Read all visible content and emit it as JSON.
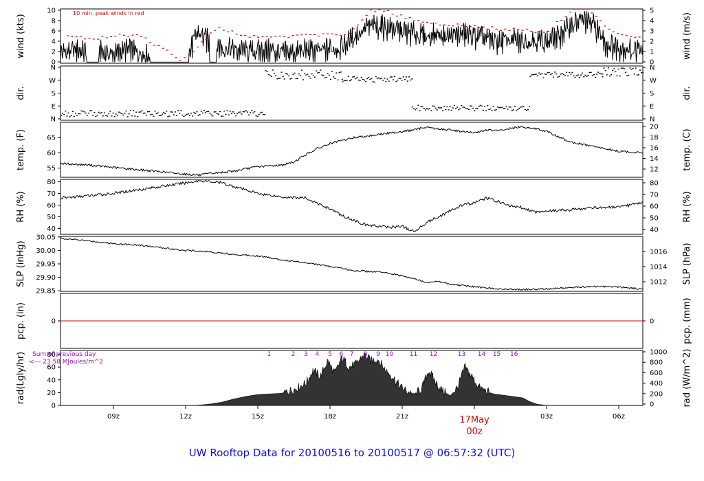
{
  "footer_title": "UW Rooftop Data for 20100516  to  20100517 @ 06:57:32  (UTC)",
  "colors": {
    "axis": "#000000",
    "peak": "#e00000",
    "annot": "#9010c0",
    "date": "#e00000",
    "footer": "#1010d0"
  },
  "chart_data": [
    {
      "type": "line",
      "ylabel": "wind (kts)",
      "ylabel_right": "wind (m/s)",
      "yticks": [
        "0",
        "2",
        "4",
        "6",
        "8",
        "10"
      ],
      "yticks_right": [
        "0",
        "1",
        "2",
        "3",
        "4",
        "5"
      ],
      "ylim": [
        0,
        10
      ],
      "annotation": "10 min. peak winds in red",
      "series": [
        {
          "x": [
            6.8,
            7.5,
            8.0,
            8.5,
            9.0,
            9.5,
            10.0,
            10.6,
            11.0,
            11.5,
            12.0,
            12.5,
            13.0,
            13.5,
            14.0,
            14.5,
            15.0,
            15.5,
            16.0,
            16.5,
            17.0,
            17.5,
            18.0,
            18.5,
            19.0,
            19.5,
            20.0,
            20.5,
            21.0,
            21.5,
            22.0,
            22.5,
            23.0,
            23.5,
            24.0,
            24.5,
            25.0,
            25.5,
            26.0,
            26.5,
            27.0,
            27.5,
            28.0,
            28.5,
            29.0,
            29.5,
            30.0,
            30.5,
            31.0
          ],
          "values": [
            2.0,
            2.5,
            1.8,
            2.2,
            1.5,
            2.6,
            2.0,
            1.2,
            0.2,
            0.2,
            0.2,
            5.8,
            4.0,
            3.0,
            2.5,
            2.2,
            2.3,
            2.5,
            2.0,
            2.0,
            2.5,
            2.2,
            2.8,
            3.0,
            5.0,
            6.5,
            7.0,
            6.5,
            6.0,
            5.5,
            5.0,
            5.5,
            5.0,
            5.5,
            5.0,
            4.5,
            4.0,
            4.5,
            4.0,
            4.5,
            4.0,
            5.0,
            7.0,
            8.0,
            7.0,
            3.5,
            3.0,
            2.5,
            2.5
          ]
        }
      ],
      "peaks": {
        "x": [
          7.1,
          8.3,
          9.2,
          10.0,
          11.9,
          13.3,
          14.6,
          16.0,
          17.4,
          18.8,
          19.6,
          20.2,
          21.0,
          22.0,
          23.0,
          24.0,
          25.0,
          26.0,
          27.0,
          28.0,
          28.7,
          29.5,
          30.5
        ],
        "values": [
          4.9,
          4.6,
          5.1,
          5.3,
          0.5,
          6.5,
          4.9,
          5.0,
          5.1,
          5.3,
          9.5,
          9.8,
          8.6,
          7.5,
          7.2,
          6.9,
          6.3,
          6.2,
          5.7,
          9.6,
          9.9,
          6.5,
          4.9
        ]
      }
    },
    {
      "type": "scatter",
      "ylabel": "dir.",
      "ylabel_right": "dir.",
      "yticks": [
        "N",
        "E",
        "S",
        "W",
        "N"
      ],
      "yticks_right": [
        "N",
        "E",
        "S",
        "W",
        "N"
      ],
      "ylim": [
        0,
        360
      ],
      "segments": [
        {
          "from": 6.8,
          "to": 15.3,
          "base": 40,
          "spread": 45
        },
        {
          "from": 15.3,
          "to": 18.5,
          "base": 310,
          "spread": 70
        },
        {
          "from": 18.5,
          "to": 21.4,
          "base": 280,
          "spread": 40
        },
        {
          "from": 21.4,
          "to": 26.3,
          "base": 80,
          "spread": 40
        },
        {
          "from": 26.3,
          "to": 29.3,
          "base": 310,
          "spread": 40
        },
        {
          "from": 29.3,
          "to": 31.0,
          "base": 330,
          "spread": 60
        }
      ]
    },
    {
      "type": "line",
      "ylabel": "temp. (F)",
      "ylabel_right": "temp. (C)",
      "yticks": [
        "55",
        "60",
        "65"
      ],
      "ytick_values": [
        55,
        60,
        65
      ],
      "yticks_right": [
        "12",
        "14",
        "16",
        "18",
        "20"
      ],
      "ylim": [
        52,
        70
      ],
      "series": [
        {
          "x": [
            6.8,
            8.0,
            9.0,
            10.0,
            11.0,
            12.0,
            12.6,
            13.0,
            14.0,
            15.0,
            16.0,
            16.5,
            17.0,
            17.5,
            18.0,
            18.5,
            19.0,
            19.5,
            20.0,
            20.5,
            21.0,
            21.5,
            22.0,
            22.5,
            23.0,
            23.5,
            24.0,
            24.5,
            25.0,
            25.5,
            26.0,
            26.5,
            27.0,
            28.0,
            29.0,
            30.0,
            31.0
          ],
          "values": [
            56.5,
            56.0,
            55.2,
            54.5,
            53.8,
            53.0,
            52.7,
            53.2,
            54.0,
            55.5,
            56.0,
            57.0,
            59.5,
            61.5,
            63.0,
            64.0,
            65.0,
            65.5,
            66.0,
            66.5,
            67.0,
            67.5,
            68.5,
            67.8,
            67.5,
            67.0,
            66.5,
            67.5,
            67.2,
            68.0,
            68.5,
            68.0,
            67.0,
            63.5,
            62.0,
            60.5,
            60.0
          ]
        }
      ]
    },
    {
      "type": "line",
      "ylabel": "RH (%)",
      "ylabel_right": "RH (%)",
      "yticks": [
        "40",
        "50",
        "60",
        "70",
        "80"
      ],
      "ytick_values": [
        40,
        50,
        60,
        70,
        80
      ],
      "yticks_right": [
        "40",
        "50",
        "60",
        "70",
        "80"
      ],
      "ylim": [
        35,
        82
      ],
      "series": [
        {
          "x": [
            6.8,
            8.0,
            9.0,
            10.0,
            11.0,
            12.0,
            12.6,
            13.5,
            14.0,
            15.0,
            16.0,
            17.0,
            17.5,
            18.0,
            18.5,
            19.0,
            19.5,
            20.0,
            20.5,
            21.0,
            21.5,
            22.0,
            22.5,
            23.0,
            23.5,
            24.0,
            24.5,
            25.0,
            25.5,
            26.0,
            26.5,
            27.0,
            28.0,
            29.0,
            30.0,
            31.0
          ],
          "values": [
            66,
            68,
            70,
            73,
            76,
            79,
            81,
            79,
            76,
            70,
            67,
            66,
            61,
            57,
            51,
            47,
            43,
            42,
            41,
            42,
            37,
            45,
            50,
            55,
            60,
            62,
            66,
            63,
            59,
            58,
            54,
            55,
            56,
            58,
            58,
            62
          ]
        }
      ]
    },
    {
      "type": "line",
      "ylabel": "SLP (inHg)",
      "ylabel_right": "SLP (hPa)",
      "yticks": [
        "29.85",
        "29.90",
        "29.95",
        "30.00",
        "30.05"
      ],
      "ytick_values": [
        29.85,
        29.9,
        29.95,
        30.0,
        30.05
      ],
      "yticks_right": [
        "1012",
        "1014",
        "1016"
      ],
      "ylim": [
        29.848,
        30.052
      ],
      "series": [
        {
          "x": [
            6.8,
            8.0,
            9.0,
            10.0,
            11.0,
            12.0,
            13.0,
            14.0,
            15.0,
            16.0,
            17.0,
            18.0,
            19.0,
            20.0,
            20.5,
            21.0,
            21.5,
            22.0,
            22.5,
            23.0,
            23.5,
            24.0,
            24.5,
            25.0,
            25.5,
            26.0,
            27.0,
            28.0,
            29.0,
            30.0,
            31.0
          ],
          "values": [
            30.045,
            30.035,
            30.025,
            30.02,
            30.01,
            30.0,
            29.995,
            29.985,
            29.98,
            29.965,
            29.955,
            29.94,
            29.925,
            29.92,
            29.915,
            29.905,
            29.895,
            29.88,
            29.885,
            29.875,
            29.87,
            29.865,
            29.86,
            29.858,
            29.856,
            29.855,
            29.857,
            29.862,
            29.866,
            29.865,
            29.856
          ]
        }
      ]
    },
    {
      "type": "line",
      "ylabel": "pcp. (in)",
      "ylabel_right": "pcp. (mm)",
      "yticks": [
        "0"
      ],
      "yticks_right": [
        "0"
      ],
      "ylim": [
        -1,
        1
      ],
      "series": [
        {
          "x": [
            6.8,
            31.0
          ],
          "values": [
            0,
            0
          ]
        }
      ]
    },
    {
      "type": "area",
      "ylabel": "rad(Lgly/hr)",
      "ylabel_right": "rad (W/m^2)",
      "yticks": [
        "0",
        "20",
        "40",
        "60",
        "80"
      ],
      "ytick_values": [
        0,
        20,
        40,
        60,
        80
      ],
      "yticks_right": [
        "0",
        "200",
        "400",
        "600",
        "800",
        "1000"
      ],
      "ylim": [
        0,
        86
      ],
      "annotation_lines": [
        "Sum of previous day",
        "<--- 23.58 MJoules/m^2"
      ],
      "hour_labels": [
        "1",
        "2",
        "3",
        "4",
        "5",
        "6",
        "7",
        "8",
        "9",
        "10",
        "11",
        "12",
        "13",
        "14",
        "15",
        "16"
      ],
      "hour_x": [
        15.47,
        16.47,
        17.0,
        17.47,
        18.0,
        18.47,
        18.9,
        19.47,
        20.0,
        20.47,
        21.47,
        22.3,
        23.47,
        24.3,
        24.93,
        25.65
      ],
      "series": [
        {
          "x": [
            12.4,
            13.0,
            13.5,
            14.0,
            14.5,
            15.0,
            15.5,
            16.0,
            16.5,
            17.0,
            17.3,
            17.6,
            17.9,
            18.2,
            18.5,
            18.8,
            19.1,
            19.4,
            19.7,
            20.0,
            20.3,
            20.6,
            20.9,
            21.2,
            21.5,
            21.8,
            22.1,
            22.4,
            22.7,
            23.0,
            23.3,
            23.6,
            23.9,
            24.2,
            24.5,
            24.8,
            25.2,
            25.6,
            26.0,
            26.3,
            26.6,
            27.0
          ],
          "values": [
            0,
            2,
            5,
            10,
            14,
            17,
            18,
            19,
            25,
            35,
            55,
            45,
            70,
            50,
            75,
            60,
            65,
            80,
            70,
            72,
            55,
            45,
            30,
            22,
            18,
            25,
            55,
            35,
            22,
            15,
            28,
            60,
            45,
            28,
            22,
            18,
            16,
            14,
            12,
            6,
            2,
            0
          ]
        }
      ]
    }
  ],
  "xaxis": {
    "ticks": [
      "09z",
      "12z",
      "15z",
      "18z",
      "21z",
      "03z",
      "06z"
    ],
    "tick_hours": [
      9,
      12,
      15,
      18,
      21,
      27,
      30
    ],
    "date_label": "17May",
    "date_sub": "00z",
    "date_hour": 24
  }
}
